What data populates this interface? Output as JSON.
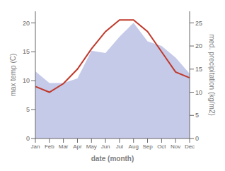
{
  "chart_data": {
    "type": "line",
    "categories": [
      "Jan",
      "Feb",
      "Mar",
      "Apr",
      "May",
      "Jun",
      "Jul",
      "Aug",
      "Sep",
      "Oct",
      "Nov",
      "Dec"
    ],
    "series": [
      {
        "type": "area",
        "axis": "y2",
        "color": "#c5cae9",
        "values": [
          14.5,
          12.0,
          12.0,
          13.0,
          19.0,
          18.5,
          22.0,
          25.0,
          21.0,
          20.0,
          17.5,
          14.0
        ]
      },
      {
        "type": "line",
        "color": "#c0392b",
        "values": [
          9.0,
          8.0,
          9.5,
          12.0,
          15.5,
          18.5,
          20.5,
          20.5,
          18.5,
          15.0,
          11.5,
          10.5
        ]
      }
    ],
    "xlabel": "date (month)",
    "ylabel": "max temp (C)",
    "y2label": "med. precipitation (kg/m2)",
    "ylim": [
      0,
      22
    ],
    "yticks": [
      0,
      5,
      10,
      15,
      20
    ],
    "y2lim": [
      0,
      27.5
    ],
    "y2ticks": [
      0,
      5,
      10,
      15,
      20,
      25
    ],
    "grid": false
  }
}
